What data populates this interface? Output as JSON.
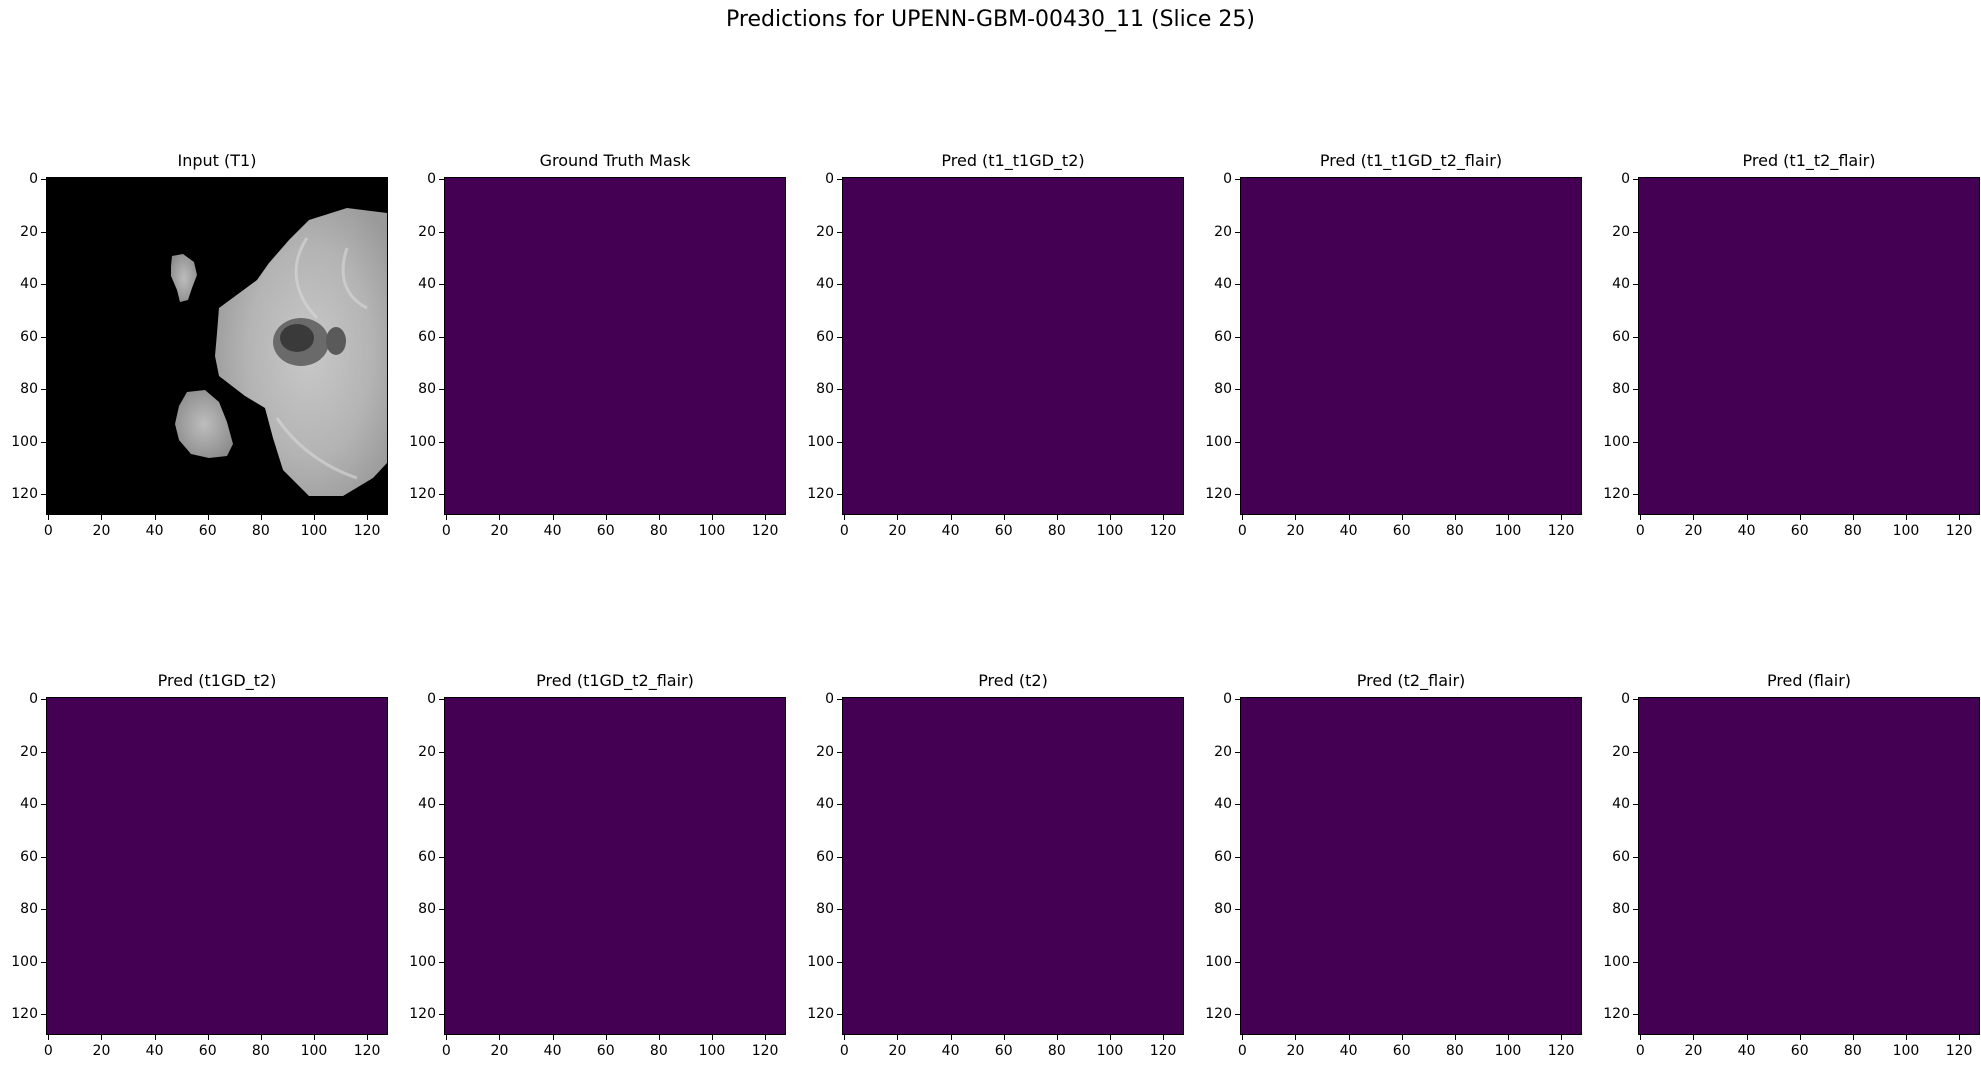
{
  "figure": {
    "title": "Predictions for UPENN-GBM-00430_11 (Slice 25)"
  },
  "colors": {
    "mask_fill": "#440154",
    "input_background": "#000000",
    "axes_edge": "#000000"
  },
  "axes": {
    "xticks": [
      "0",
      "20",
      "40",
      "60",
      "80",
      "100",
      "120"
    ],
    "yticks": [
      "0",
      "20",
      "40",
      "60",
      "80",
      "100",
      "120"
    ],
    "xlim": [
      -0.5,
      127.5
    ],
    "ylim": [
      127.5,
      -0.5
    ]
  },
  "panels": [
    {
      "title": "Input (T1)",
      "kind": "image"
    },
    {
      "title": "Ground Truth Mask",
      "kind": "mask"
    },
    {
      "title": "Pred (t1_t1GD_t2)",
      "kind": "mask"
    },
    {
      "title": "Pred (t1_t1GD_t2_flair)",
      "kind": "mask"
    },
    {
      "title": "Pred (t1_t2_flair)",
      "kind": "mask"
    },
    {
      "title": "Pred (t1GD_t2)",
      "kind": "mask"
    },
    {
      "title": "Pred (t1GD_t2_flair)",
      "kind": "mask"
    },
    {
      "title": "Pred (t2)",
      "kind": "mask"
    },
    {
      "title": "Pred (t2_flair)",
      "kind": "mask"
    },
    {
      "title": "Pred (flair)",
      "kind": "mask"
    }
  ]
}
